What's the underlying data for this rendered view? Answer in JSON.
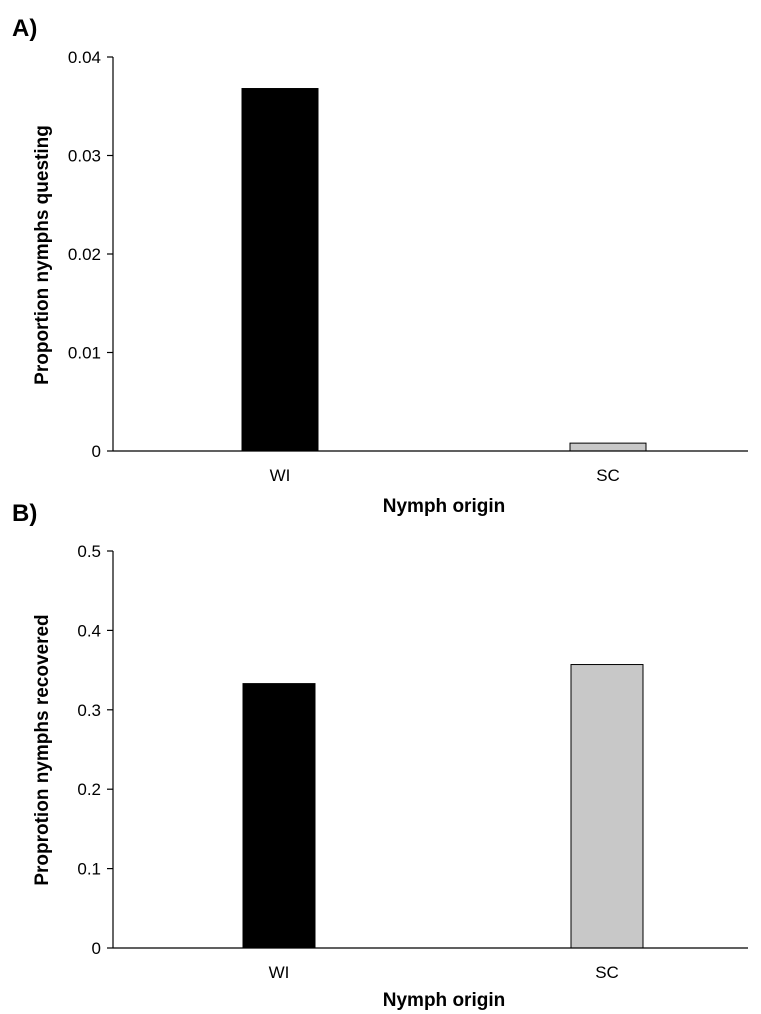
{
  "chart_data": [
    {
      "type": "bar",
      "panel_label": "A)",
      "categories": [
        "WI",
        "SC"
      ],
      "values": [
        0.0368,
        0.0008
      ],
      "colors": [
        "#000000",
        "#c8c8c8"
      ],
      "xlabel": "Nymph origin",
      "ylabel": "Proportion nymphs questing",
      "ylim": [
        0,
        0.04
      ],
      "yticks": [
        "0",
        "0.01",
        "0.02",
        "0.03",
        "0.04"
      ],
      "grid": false,
      "legend": "none"
    },
    {
      "type": "bar",
      "panel_label": "B)",
      "categories": [
        "WI",
        "SC"
      ],
      "values": [
        0.333,
        0.357
      ],
      "colors": [
        "#000000",
        "#c8c8c8"
      ],
      "xlabel": "Nymph origin",
      "ylabel": "Proprotion nymphs recovered",
      "ylim": [
        0,
        0.5
      ],
      "yticks": [
        "0",
        "0.1",
        "0.2",
        "0.3",
        "0.4",
        "0.5"
      ],
      "grid": false,
      "legend": "none"
    }
  ]
}
